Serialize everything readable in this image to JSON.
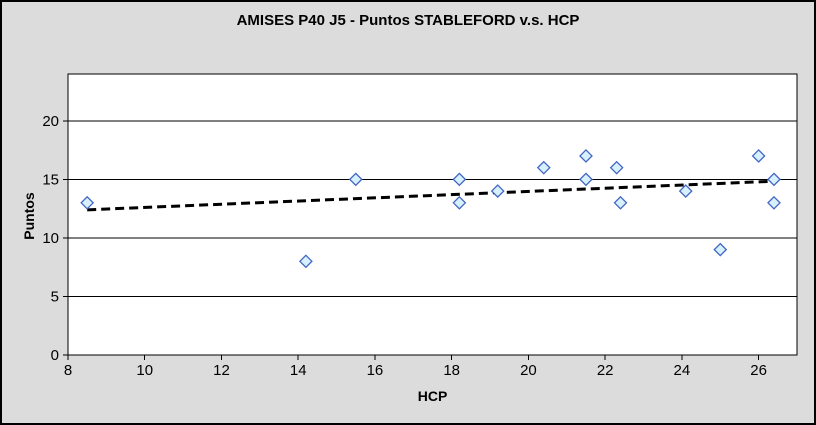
{
  "colors": {
    "background": "#DCDCDC",
    "plot_background": "#FFFFFF",
    "border": "#000000",
    "gridline": "#000000",
    "text": "#000000",
    "marker_fill": "#D6F0FC",
    "marker_stroke": "#4466C4",
    "trendline": "#000000"
  },
  "chart_data": {
    "type": "scatter",
    "title": "AMISES P40 J5 - Puntos STABLEFORD v.s. HCP",
    "xlabel": "HCP",
    "ylabel": "Puntos",
    "xlim": [
      8,
      27
    ],
    "ylim": [
      0,
      24
    ],
    "x_ticks": [
      8,
      10,
      12,
      14,
      16,
      18,
      20,
      22,
      24,
      26
    ],
    "y_ticks": [
      0,
      5,
      10,
      15,
      20
    ],
    "grid": "horizontal",
    "legend": "none",
    "series": [
      {
        "name": "Puntos STABLEFORD",
        "marker": "diamond",
        "points": [
          [
            8.5,
            13
          ],
          [
            14.2,
            8
          ],
          [
            15.5,
            15
          ],
          [
            18.2,
            15
          ],
          [
            18.2,
            13
          ],
          [
            19.2,
            14
          ],
          [
            20.4,
            16
          ],
          [
            21.5,
            17
          ],
          [
            21.5,
            15
          ],
          [
            22.3,
            16
          ],
          [
            22.4,
            13
          ],
          [
            24.1,
            14
          ],
          [
            25,
            9
          ],
          [
            26,
            17
          ],
          [
            26.4,
            15
          ],
          [
            26.4,
            13
          ]
        ]
      }
    ],
    "trendline": {
      "style": "dashed",
      "x1": 8.5,
      "y1": 12.4,
      "x2": 26.45,
      "y2": 14.85
    }
  }
}
